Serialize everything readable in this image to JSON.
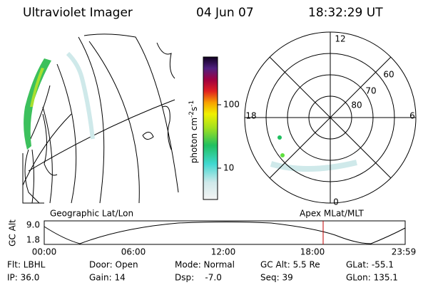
{
  "header": {
    "title": "Ultraviolet Imager",
    "date": "04 Jun 07",
    "time": "18:32:29 UT"
  },
  "colorbar": {
    "label": {
      "base": "photon cm",
      "exp1": "-2",
      "mid": "s",
      "exp2": "-1"
    },
    "ticks": [
      "100",
      "10"
    ]
  },
  "polar": {
    "mlt_labels": [
      "12",
      "18",
      "6",
      "0"
    ],
    "lat_labels": [
      "60",
      "70",
      "80"
    ]
  },
  "timeline": {
    "left_title": "Geographic Lat/Lon",
    "right_title": "Apex MLat/MLT",
    "axis_label": "GC Alt",
    "y_labels": [
      "9.0",
      "1.8"
    ],
    "x_labels": [
      "00:00",
      "06:00",
      "12:00",
      "18:00",
      "23:59"
    ]
  },
  "info": {
    "rows": [
      [
        "Flt: LBHL",
        "Door: Open",
        "Mode: Normal",
        "GC Alt: 5.5 Re",
        "GLat: -55.1"
      ],
      [
        "IP: 36.0",
        "Gain: 14",
        "Dsp:    -7.0",
        "Seq: 39",
        "GLon: 135.1"
      ]
    ]
  }
}
